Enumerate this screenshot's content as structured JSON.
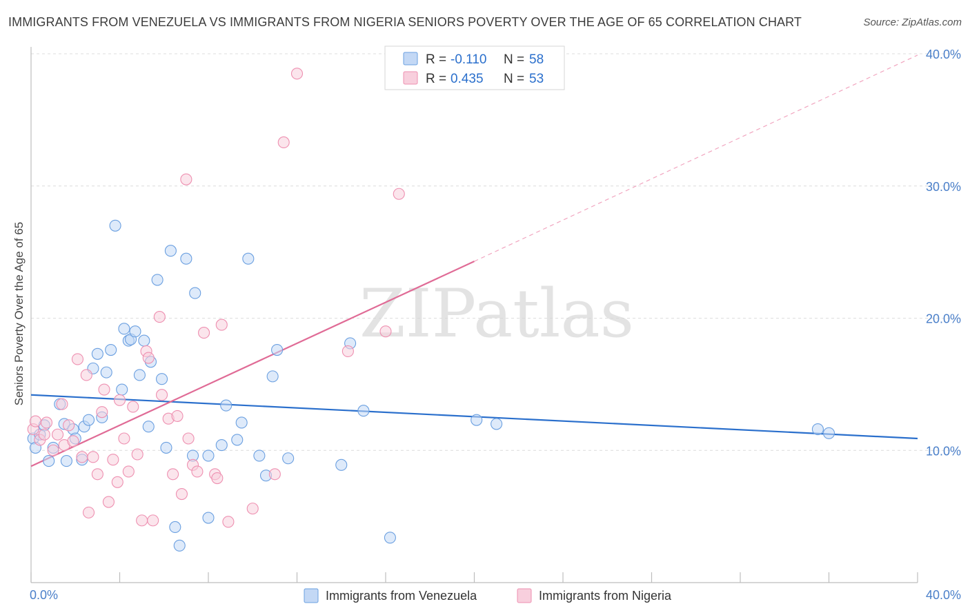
{
  "chart_data": {
    "type": "scatter",
    "title": "IMMIGRANTS FROM VENEZUELA VS IMMIGRANTS FROM NIGERIA SENIORS POVERTY OVER THE AGE OF 65 CORRELATION CHART",
    "source": "Source: ZipAtlas.com",
    "xlabel": "",
    "ylabel": "Seniors Poverty Over the Age of 65",
    "xlim": [
      0,
      40
    ],
    "ylim": [
      0,
      40
    ],
    "x_tick_labels": [
      "0.0%",
      "40.0%"
    ],
    "y_ticks": [
      10,
      20,
      30,
      40
    ],
    "y_tick_labels": [
      "10.0%",
      "20.0%",
      "30.0%",
      "40.0%"
    ],
    "watermark": "ZIPatlas",
    "colors": {
      "venezuela": "#6a9fe0",
      "venezuela_fill": "#c3d8f5",
      "venezuela_line": "#2a6fcc",
      "nigeria": "#ee8fb0",
      "nigeria_fill": "#f8cfdd",
      "nigeria_line": "#e06b96",
      "tick_text": "#4a7fc9"
    },
    "legend": {
      "entries": [
        {
          "r_label": "R = ",
          "r_value": "-0.110",
          "n_label": "N = ",
          "n_value": "58"
        },
        {
          "r_label": "R = ",
          "r_value": "0.435",
          "n_label": "N = ",
          "n_value": "53"
        }
      ]
    },
    "series": [
      {
        "name": "Immigrants from Venezuela",
        "trend": {
          "x0": 0,
          "y0": 14.2,
          "x1": 40,
          "y1": 10.9
        },
        "points": [
          [
            0.1,
            10.9
          ],
          [
            0.2,
            10.2
          ],
          [
            0.4,
            11.2
          ],
          [
            0.6,
            11.9
          ],
          [
            0.8,
            9.2
          ],
          [
            1.0,
            10.2
          ],
          [
            1.3,
            13.5
          ],
          [
            1.5,
            12.0
          ],
          [
            1.6,
            9.2
          ],
          [
            1.9,
            11.6
          ],
          [
            2.0,
            10.9
          ],
          [
            2.3,
            9.3
          ],
          [
            2.4,
            11.8
          ],
          [
            2.6,
            12.3
          ],
          [
            2.8,
            16.2
          ],
          [
            3.0,
            17.3
          ],
          [
            3.2,
            12.5
          ],
          [
            3.4,
            15.9
          ],
          [
            3.6,
            17.6
          ],
          [
            3.8,
            27.0
          ],
          [
            4.1,
            14.6
          ],
          [
            4.2,
            19.2
          ],
          [
            4.4,
            18.3
          ],
          [
            4.5,
            18.4
          ],
          [
            4.7,
            19.0
          ],
          [
            4.9,
            15.7
          ],
          [
            5.1,
            18.3
          ],
          [
            5.3,
            11.8
          ],
          [
            5.4,
            16.7
          ],
          [
            5.7,
            22.9
          ],
          [
            5.9,
            15.4
          ],
          [
            6.1,
            10.2
          ],
          [
            6.3,
            25.1
          ],
          [
            6.5,
            4.2
          ],
          [
            6.7,
            2.8
          ],
          [
            7.0,
            24.5
          ],
          [
            7.3,
            9.6
          ],
          [
            7.4,
            21.9
          ],
          [
            8.0,
            9.6
          ],
          [
            8.0,
            4.9
          ],
          [
            8.6,
            10.4
          ],
          [
            8.8,
            13.4
          ],
          [
            9.3,
            10.8
          ],
          [
            9.5,
            12.1
          ],
          [
            9.8,
            24.5
          ],
          [
            10.3,
            9.6
          ],
          [
            10.6,
            8.1
          ],
          [
            11.1,
            17.6
          ],
          [
            10.9,
            15.6
          ],
          [
            11.6,
            9.4
          ],
          [
            14.0,
            8.9
          ],
          [
            14.4,
            18.1
          ],
          [
            15.0,
            13.0
          ],
          [
            16.2,
            3.4
          ],
          [
            20.1,
            12.3
          ],
          [
            21.0,
            12.0
          ],
          [
            35.5,
            11.6
          ],
          [
            36.0,
            11.3
          ]
        ]
      },
      {
        "name": "Immigrants from Nigeria",
        "trend": {
          "x0": 0,
          "y0": 8.8,
          "x1": 20.0,
          "y1": 24.3
        },
        "trend_dashed": {
          "x0": 20.0,
          "y0": 24.3,
          "x1": 40,
          "y1": 39.9
        },
        "points": [
          [
            0.1,
            11.6
          ],
          [
            0.2,
            12.2
          ],
          [
            0.4,
            10.8
          ],
          [
            0.6,
            11.2
          ],
          [
            0.7,
            12.1
          ],
          [
            1.0,
            10.0
          ],
          [
            1.2,
            11.2
          ],
          [
            1.4,
            13.5
          ],
          [
            1.5,
            10.4
          ],
          [
            1.7,
            11.9
          ],
          [
            1.9,
            10.7
          ],
          [
            2.1,
            16.9
          ],
          [
            2.3,
            9.5
          ],
          [
            2.5,
            15.7
          ],
          [
            2.6,
            5.3
          ],
          [
            2.8,
            9.5
          ],
          [
            3.0,
            8.2
          ],
          [
            3.2,
            12.9
          ],
          [
            3.3,
            14.6
          ],
          [
            3.5,
            6.1
          ],
          [
            3.7,
            9.3
          ],
          [
            3.9,
            7.6
          ],
          [
            4.0,
            13.8
          ],
          [
            4.2,
            10.9
          ],
          [
            4.4,
            8.4
          ],
          [
            4.6,
            13.3
          ],
          [
            4.8,
            9.7
          ],
          [
            5.0,
            4.7
          ],
          [
            5.2,
            17.5
          ],
          [
            5.3,
            17.0
          ],
          [
            5.5,
            4.7
          ],
          [
            5.8,
            20.1
          ],
          [
            5.9,
            14.2
          ],
          [
            6.2,
            12.4
          ],
          [
            6.4,
            8.2
          ],
          [
            6.6,
            12.6
          ],
          [
            6.8,
            6.7
          ],
          [
            7.0,
            30.5
          ],
          [
            7.1,
            10.9
          ],
          [
            7.3,
            8.9
          ],
          [
            7.5,
            8.4
          ],
          [
            7.8,
            18.9
          ],
          [
            8.3,
            8.2
          ],
          [
            8.4,
            7.9
          ],
          [
            8.6,
            19.5
          ],
          [
            8.9,
            4.6
          ],
          [
            10.0,
            5.6
          ],
          [
            11.0,
            8.2
          ],
          [
            11.4,
            33.3
          ],
          [
            12.0,
            38.5
          ],
          [
            14.3,
            17.5
          ],
          [
            16.0,
            19.0
          ],
          [
            16.6,
            29.4
          ]
        ]
      }
    ]
  }
}
